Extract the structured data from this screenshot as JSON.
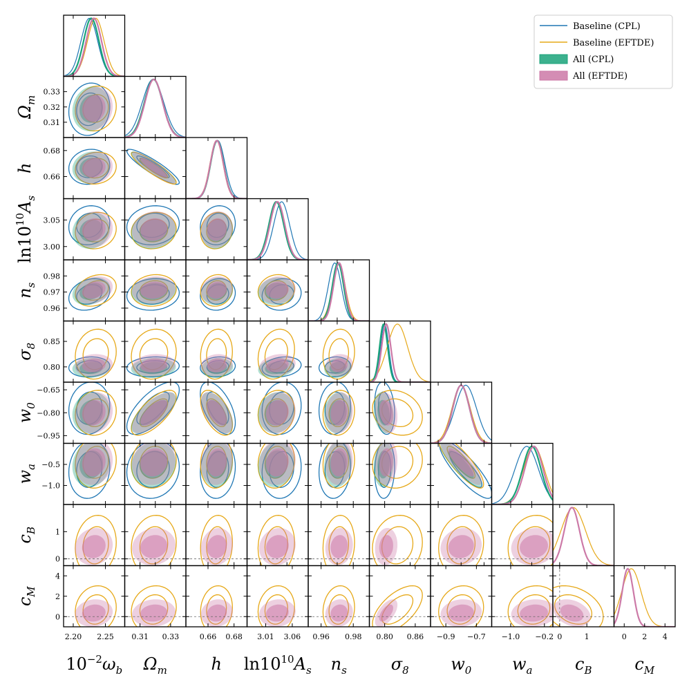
{
  "chart_data": {
    "type": "corner",
    "title": "",
    "parameters": [
      {
        "label": "10⁻²ω_b",
        "label_base": "10",
        "label_sup": "−2",
        "label_main": "ω",
        "label_sub": "b",
        "range": [
          2.185,
          2.28
        ],
        "ticks": [
          2.2,
          2.25
        ],
        "tick_labels": [
          "2.20",
          "2.25"
        ]
      },
      {
        "label": "Ω_m",
        "label_base": "",
        "label_sup": "",
        "label_main": "Ω",
        "label_sub": "m",
        "range": [
          0.3,
          0.34
        ],
        "ticks": [
          0.31,
          0.32,
          0.33
        ],
        "tick_labels": [
          "0.31",
          "0.32",
          "0.33"
        ]
      },
      {
        "label": "h",
        "label_base": "",
        "label_sup": "",
        "label_main": "h",
        "label_sub": "",
        "range": [
          0.643,
          0.69
        ],
        "ticks": [
          0.66,
          0.68
        ],
        "tick_labels": [
          "0.66",
          "0.68"
        ]
      },
      {
        "label": "ln10¹⁰A_s",
        "label_base": "ln10",
        "label_sup": "10",
        "label_main": "A",
        "label_sub": "s",
        "range": [
          2.975,
          3.09
        ],
        "ticks": [
          3.0,
          3.05
        ],
        "tick_labels": [
          "3.00",
          "3.05"
        ]
      },
      {
        "label": "n_s",
        "label_base": "",
        "label_sup": "",
        "label_main": "n",
        "label_sub": "s",
        "range": [
          0.952,
          0.99
        ],
        "ticks": [
          0.96,
          0.97,
          0.98
        ],
        "tick_labels": [
          "0.96",
          "0.97",
          "0.98"
        ]
      },
      {
        "label": "σ_8",
        "label_base": "",
        "label_sup": "",
        "label_main": "σ",
        "label_sub": "8",
        "range": [
          0.77,
          0.89
        ],
        "ticks": [
          0.8,
          0.85
        ],
        "tick_labels": [
          "0.80",
          "0.85"
        ]
      },
      {
        "label": "w_0",
        "label_base": "",
        "label_sup": "",
        "label_main": "w",
        "label_sub": "0",
        "range": [
          -1.0,
          -0.6
        ],
        "ticks": [
          -0.95,
          -0.8,
          -0.65
        ],
        "tick_labels": [
          "−0.95",
          "−0.80",
          "−0.65"
        ]
      },
      {
        "label": "w_a",
        "label_base": "",
        "label_sup": "",
        "label_main": "w",
        "label_sub": "a",
        "range": [
          -1.45,
          0.0
        ],
        "ticks": [
          -1.0,
          -0.5
        ],
        "tick_labels": [
          "−1.0",
          "−0.5"
        ]
      },
      {
        "label": "c_B",
        "label_base": "",
        "label_sup": "",
        "label_main": "c",
        "label_sub": "B",
        "range": [
          -0.25,
          2.0
        ],
        "ticks": [
          0,
          1
        ],
        "tick_labels": [
          "0",
          "1"
        ]
      },
      {
        "label": "c_M",
        "label_base": "",
        "label_sup": "",
        "label_main": "c",
        "label_sub": "M",
        "range": [
          -1.0,
          5.0
        ],
        "ticks": [
          0,
          2,
          4
        ],
        "tick_labels": [
          "0",
          "2",
          "4"
        ]
      }
    ],
    "bottom_tick_labels": [
      [
        "2.20",
        "2.25"
      ],
      [
        "0.31",
        "0.33"
      ],
      [
        "0.66",
        "0.68"
      ],
      [
        "3.01",
        "3.06"
      ],
      [
        "0.96",
        "0.98"
      ],
      [
        "0.80",
        "0.86"
      ],
      [
        "−0.9",
        "−0.7"
      ],
      [
        "−1.0",
        "−0.2"
      ],
      [
        "0",
        "1"
      ],
      [
        "0",
        "2",
        "4"
      ]
    ],
    "bottom_tick_values": [
      [
        2.2,
        2.25
      ],
      [
        0.31,
        0.33
      ],
      [
        0.66,
        0.68
      ],
      [
        3.01,
        3.06
      ],
      [
        0.96,
        0.98
      ],
      [
        0.8,
        0.86
      ],
      [
        -0.9,
        -0.7
      ],
      [
        -1.0,
        -0.2
      ],
      [
        0,
        1
      ],
      [
        0,
        2,
        4
      ]
    ],
    "reference_values": {
      "w_0": -1.0,
      "w_a": 0.0,
      "c_B": 0.0,
      "c_M": 0.0
    },
    "series": [
      {
        "name": "Baseline (CPL)",
        "style": "line",
        "color": "#1f77b4",
        "means": [
          2.225,
          0.3185,
          0.6675,
          3.04,
          0.9685,
          0.8,
          -0.77,
          -0.62,
          null,
          null
        ],
        "sigmas": [
          0.013,
          0.007,
          0.0055,
          0.015,
          0.004,
          0.008,
          0.07,
          0.28,
          null,
          null
        ]
      },
      {
        "name": "Baseline (EFTDE)",
        "style": "line",
        "color": "#e6a817",
        "means": [
          2.235,
          0.319,
          0.6665,
          3.03,
          0.971,
          0.825,
          -0.8,
          -0.45,
          0.5,
          0.7
        ],
        "sigmas": [
          0.013,
          0.006,
          0.005,
          0.014,
          0.004,
          0.02,
          0.06,
          0.25,
          0.45,
          0.95
        ]
      },
      {
        "name": "All (CPL)",
        "style": "fill",
        "color": "#1aa37a",
        "means": [
          2.228,
          0.3188,
          0.667,
          3.03,
          0.9705,
          0.798,
          -0.8,
          -0.5,
          null,
          null
        ],
        "sigmas": [
          0.012,
          0.006,
          0.005,
          0.014,
          0.0035,
          0.008,
          0.055,
          0.22,
          null,
          null
        ]
      },
      {
        "name": "All (EFTDE)",
        "style": "fill",
        "color": "#cc79a7",
        "means": [
          2.232,
          0.319,
          0.6668,
          3.032,
          0.9712,
          0.803,
          -0.8,
          -0.45,
          0.45,
          0.35
        ],
        "sigmas": [
          0.012,
          0.0058,
          0.005,
          0.014,
          0.0035,
          0.009,
          0.055,
          0.22,
          0.28,
          0.55
        ]
      }
    ],
    "legend": {
      "placement": "top-right",
      "entries": [
        "Baseline (CPL)",
        "Baseline (EFTDE)",
        "All (CPL)",
        "All (EFTDE)"
      ]
    },
    "grid": false
  }
}
